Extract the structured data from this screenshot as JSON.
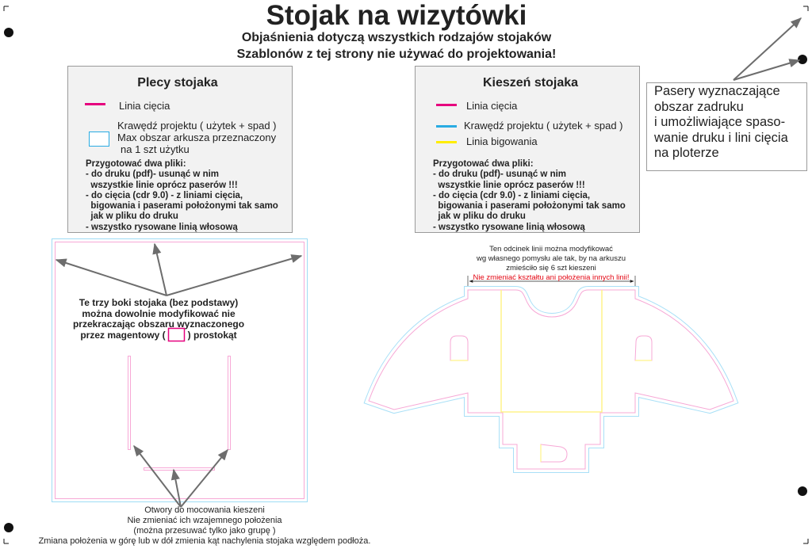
{
  "header": {
    "title": "Stojak na wizytówki",
    "subtitle1": "Objaśnienia dotyczą wszystkich rodzajów stojaków",
    "subtitle2": "Szablonów z tej strony nie używać do projektowania!"
  },
  "colors": {
    "cut": "#e6007e",
    "edge": "#29abe2",
    "fold": "#ffed00",
    "arrow": "#6d6d6d",
    "warning": "#e30613"
  },
  "back_panel": {
    "title": "Plecy stojaka",
    "legend_cut": "Linia cięcia",
    "legend_edge_1": "Krawędź  projektu ( użytek + spad )",
    "legend_edge_2": "Max obszar arkusza przeznaczony",
    "legend_edge_3": "na  1 szt użytku",
    "instructions": [
      "Przygotować dwa pliki:",
      "- do druku (pdf)- usunąć w nim",
      "  wszystkie linie oprócz paserów !!!",
      "- do cięcia (cdr 9.0) - z liniami cięcia,",
      "  bigowania i paserami położonymi tak samo",
      "  jak w pliku do druku",
      "- wszystko rysowane linią włosową"
    ]
  },
  "pocket_panel": {
    "title": "Kieszeń  stojaka",
    "legend_cut": "Linia cięcia",
    "legend_edge": "Krawędź  projektu ( użytek + spad )",
    "legend_fold": "Linia bigowania",
    "instructions": [
      "Przygotować dwa pliki:",
      "- do druku (pdf)- usunąć w nim",
      "  wszystkie linie oprócz paserów !!!",
      "- do cięcia (cdr 9.0) - z liniami cięcia,",
      "  bigowania i paserami położonymi tak samo",
      "  jak w pliku do druku",
      "- wszystko rysowane linią włosową"
    ]
  },
  "registration_note": {
    "lines": [
      "Pasery wyznaczające",
      "obszar zadruku",
      "i umożliwiające spaso-",
      "wanie druku i lini cięcia",
      "na ploterze"
    ]
  },
  "back_drawing": {
    "sides_note": [
      "Te trzy boki  stojaka (bez  podstawy)",
      "można dowolnie  modyfikować    nie",
      "przekraczając obszaru wyznaczonego"
    ],
    "sides_note_last_a": "przez magentowy  (",
    "sides_note_last_b": ") prostokąt",
    "holes_note": [
      "Otwory do mocowania kieszeni",
      "Nie zmieniać  ich wzajemnego położenia",
      "(można przesuwać tylko jako grupę )",
      "Zmiana położenia  w górę lub w dół zmienia kąt nachylenia stojaka względem podłoża."
    ]
  },
  "pocket_drawing": {
    "dimension_note": [
      "Ten odcinek linii można modyfikować",
      "wg własnego pomysłu ale tak, by na arkuszu",
      "zmieściło się 6 szt kieszeni"
    ],
    "warning": "Nie zmieniać kształtu ani położenia innych linii!"
  }
}
